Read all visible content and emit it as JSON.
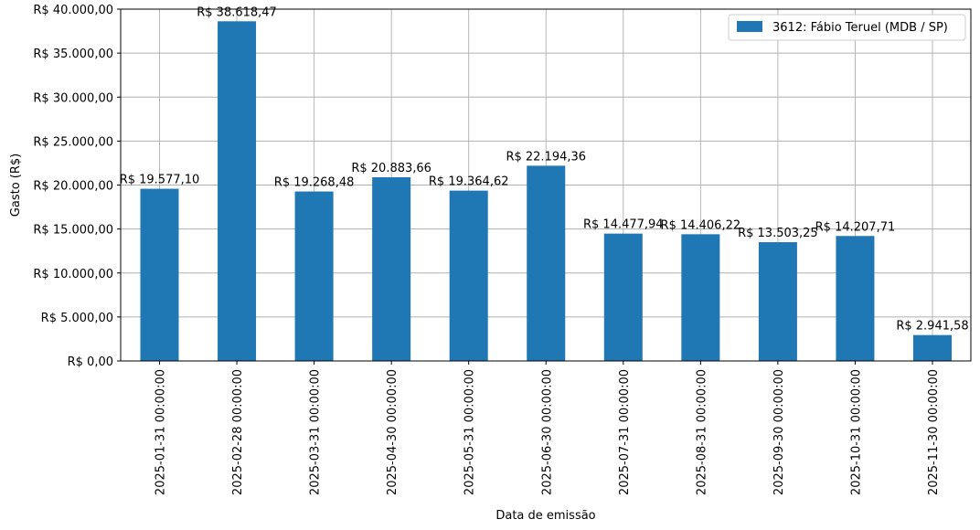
{
  "chart_data": {
    "type": "bar",
    "title": "",
    "xlabel": "Data de emissão",
    "ylabel": "Gasto (R$)",
    "ylim": [
      0,
      40000
    ],
    "yticks": [
      0,
      5000,
      10000,
      15000,
      20000,
      25000,
      30000,
      35000,
      40000
    ],
    "ytick_labels": [
      "R$ 0,00",
      "R$ 5.000,00",
      "R$ 10.000,00",
      "R$ 15.000,00",
      "R$ 20.000,00",
      "R$ 25.000,00",
      "R$ 30.000,00",
      "R$ 35.000,00",
      "R$ 40.000,00"
    ],
    "grid": true,
    "legend_position": "top-right",
    "categories": [
      "2025-01-31 00:00:00",
      "2025-02-28 00:00:00",
      "2025-03-31 00:00:00",
      "2025-04-30 00:00:00",
      "2025-05-31 00:00:00",
      "2025-06-30 00:00:00",
      "2025-07-31 00:00:00",
      "2025-08-31 00:00:00",
      "2025-09-30 00:00:00",
      "2025-10-31 00:00:00",
      "2025-11-30 00:00:00"
    ],
    "series": [
      {
        "name": "3612: Fábio Teruel (MDB / SP)",
        "color": "#1f77b4",
        "values": [
          19577.1,
          38618.47,
          19268.48,
          20883.66,
          19364.62,
          22194.36,
          14477.94,
          14406.22,
          13503.25,
          14207.71,
          2941.58
        ],
        "value_labels": [
          "R$ 19.577,10",
          "R$ 38.618,47",
          "R$ 19.268,48",
          "R$ 20.883,66",
          "R$ 19.364,62",
          "R$ 22.194,36",
          "R$ 14.477,94",
          "R$ 14.406,22",
          "R$ 13.503,25",
          "R$ 14.207,71",
          "R$ 2.941,58"
        ]
      }
    ]
  }
}
